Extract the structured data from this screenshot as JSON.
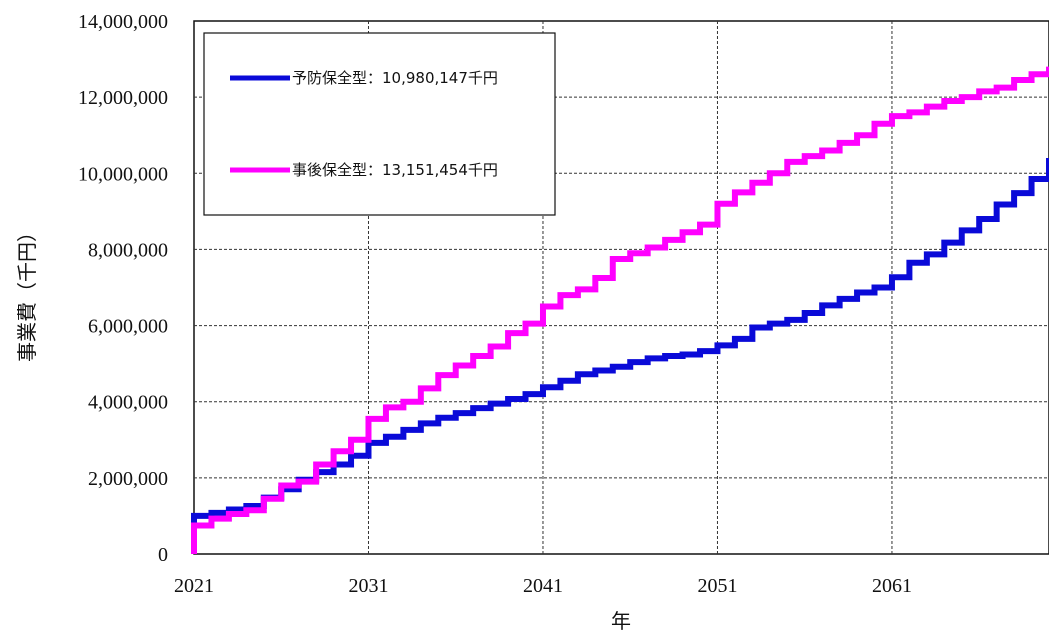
{
  "chart_data": {
    "type": "line",
    "xlabel": "年",
    "ylabel": "事業費（千円）",
    "xlim": [
      2021,
      2070
    ],
    "ylim": [
      0,
      14000000
    ],
    "x_ticks": [
      2021,
      2031,
      2041,
      2051,
      2061
    ],
    "y_ticks": [
      0,
      2000000,
      4000000,
      6000000,
      8000000,
      10000000,
      12000000,
      14000000
    ],
    "y_tick_labels": [
      "0",
      "2,000,000",
      "4,000,000",
      "6,000,000",
      "8,000,000",
      "10,000,000",
      "12,000,000",
      "14,000,000"
    ],
    "grid": true,
    "legend_position": "top-left",
    "x": [
      2021,
      2022,
      2023,
      2024,
      2025,
      2026,
      2027,
      2028,
      2029,
      2030,
      2031,
      2032,
      2033,
      2034,
      2035,
      2036,
      2037,
      2038,
      2039,
      2040,
      2041,
      2042,
      2043,
      2044,
      2045,
      2046,
      2047,
      2048,
      2049,
      2050,
      2051,
      2052,
      2053,
      2054,
      2055,
      2056,
      2057,
      2058,
      2059,
      2060,
      2061,
      2062,
      2063,
      2064,
      2065,
      2066,
      2067,
      2068,
      2069,
      2070
    ],
    "series": [
      {
        "name": "予防保全型：10,980,147千円",
        "color": "#0a0ad8",
        "values": [
          1000000,
          1080000,
          1170000,
          1260000,
          1480000,
          1700000,
          1950000,
          2150000,
          2350000,
          2580000,
          2920000,
          3080000,
          3260000,
          3430000,
          3580000,
          3700000,
          3830000,
          3950000,
          4070000,
          4200000,
          4380000,
          4550000,
          4720000,
          4820000,
          4920000,
          5040000,
          5140000,
          5200000,
          5240000,
          5330000,
          5480000,
          5650000,
          5950000,
          6050000,
          6150000,
          6330000,
          6530000,
          6700000,
          6870000,
          7000000,
          7270000,
          7650000,
          7870000,
          8180000,
          8500000,
          8800000,
          9180000,
          9480000,
          9850000,
          10400000
        ]
      },
      {
        "name": "事後保全型：13,151,454千円",
        "color": "#ff00ff",
        "values": [
          750000,
          930000,
          1050000,
          1150000,
          1450000,
          1800000,
          1900000,
          2350000,
          2700000,
          3000000,
          3550000,
          3850000,
          4000000,
          4350000,
          4700000,
          4950000,
          5200000,
          5450000,
          5800000,
          6050000,
          6500000,
          6800000,
          6950000,
          7250000,
          7750000,
          7900000,
          8050000,
          8250000,
          8450000,
          8650000,
          9200000,
          9500000,
          9750000,
          10000000,
          10300000,
          10450000,
          10600000,
          10800000,
          11000000,
          11300000,
          11500000,
          11600000,
          11750000,
          11900000,
          12000000,
          12150000,
          12250000,
          12450000,
          12600000,
          12800000
        ]
      }
    ]
  }
}
